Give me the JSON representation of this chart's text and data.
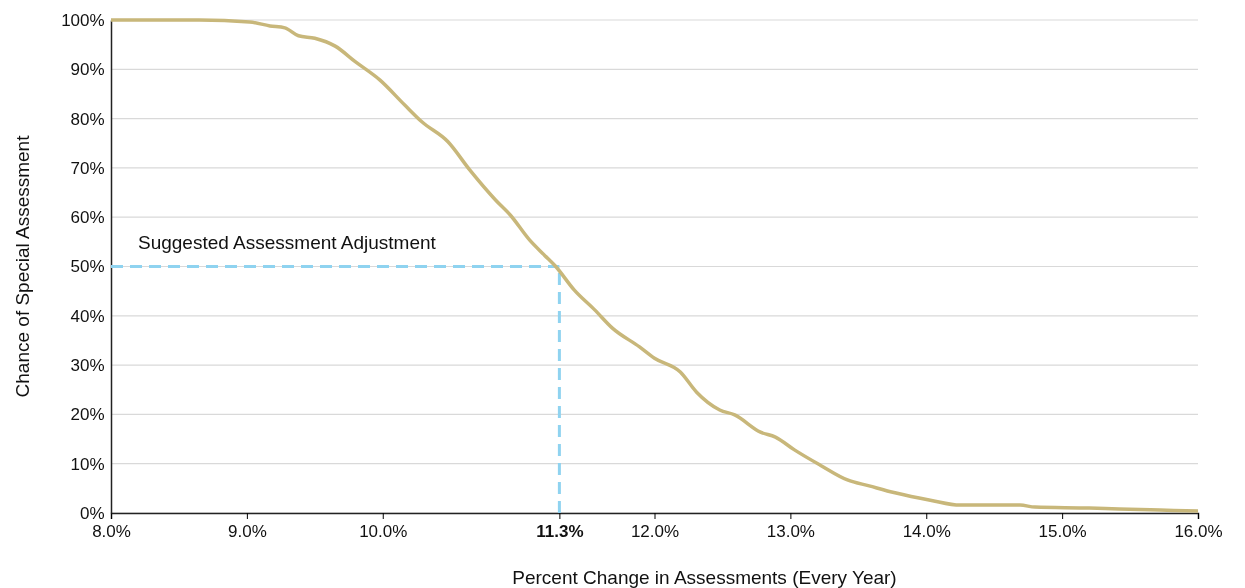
{
  "chart_data": {
    "type": "line",
    "xlabel": "Percent Change in Assessments (Every Year)",
    "ylabel": "Chance of Special Assessment",
    "x": [
      8.0,
      8.65,
      9.02,
      9.17,
      9.28,
      9.38,
      9.5,
      9.65,
      9.8,
      9.98,
      10.16,
      10.29,
      10.48,
      10.64,
      10.83,
      10.94,
      11.08,
      11.19,
      11.27,
      11.41,
      11.56,
      11.69,
      11.89,
      12.0,
      12.19,
      12.31,
      12.48,
      12.59,
      12.78,
      12.89,
      13.03,
      13.22,
      13.42,
      13.58,
      13.77,
      14.03,
      14.25,
      14.69,
      14.8,
      15.2,
      15.42,
      15.72,
      16.0
    ],
    "series": [
      {
        "color": "#c8b77a",
        "values": [
          100,
          100,
          99.6,
          98.8,
          98.4,
          96.8,
          96.3,
          94.7,
          91.5,
          87.8,
          82.8,
          79.3,
          75.3,
          69.6,
          63.5,
          60.4,
          55.4,
          52.3,
          50.1,
          45.2,
          41.2,
          37.5,
          33.7,
          31.4,
          28.6,
          24.5,
          20.9,
          19.9,
          16.4,
          15.4,
          12.8,
          9.7,
          6.7,
          5.5,
          4.1,
          2.6,
          1.6,
          1.6,
          1.2,
          1.0,
          0.8,
          0.6,
          0.4
        ]
      }
    ],
    "xlim": [
      8,
      16
    ],
    "xticks": [
      {
        "value": 8,
        "label": "8.0%"
      },
      {
        "value": 9,
        "label": "9.0%"
      },
      {
        "value": 10,
        "label": "10.0%"
      },
      {
        "value": 11.3,
        "label": "11.3%"
      },
      {
        "value": 12,
        "label": "12.0%"
      },
      {
        "value": 13,
        "label": "13.0%"
      },
      {
        "value": 14,
        "label": "14.0%"
      },
      {
        "value": 15,
        "label": "15.0%"
      },
      {
        "value": 16,
        "label": "16.0%"
      }
    ],
    "ylim": [
      0,
      100
    ],
    "yticks": [
      {
        "value": 0,
        "label": "0%"
      },
      {
        "value": 10,
        "label": "10%"
      },
      {
        "value": 20,
        "label": "20%"
      },
      {
        "value": 30,
        "label": "30%"
      },
      {
        "value": 40,
        "label": "40%"
      },
      {
        "value": 50,
        "label": "50%"
      },
      {
        "value": 60,
        "label": "60%"
      },
      {
        "value": 70,
        "label": "70%"
      },
      {
        "value": 80,
        "label": "80%"
      },
      {
        "value": 90,
        "label": "90%"
      },
      {
        "value": 100,
        "label": "100%"
      }
    ],
    "grid": "y",
    "line_style": "solid",
    "marker": "none",
    "ref_lines": [
      {
        "axis": "x",
        "value": 11.3,
        "color": "#8fd3f0",
        "line_style": "dashed"
      },
      {
        "axis": "y",
        "value": 50,
        "label": "Suggested Assessment Adjustment",
        "color": "#8fd3f0",
        "line_style": "dashed"
      }
    ]
  }
}
